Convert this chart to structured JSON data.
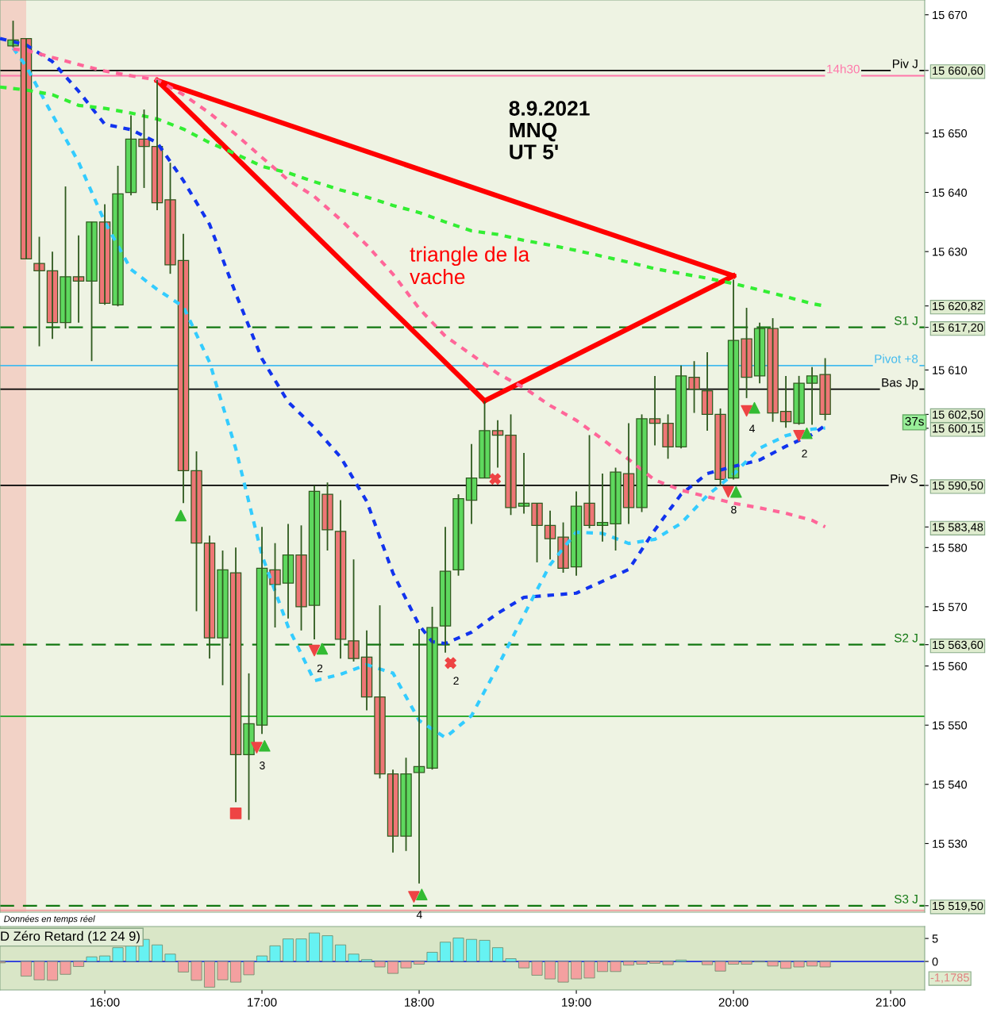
{
  "chart_data": [
    {
      "type": "candlestick",
      "title": "8.9.2021\nMNQ\nUT 5'",
      "tick_labels": "y",
      "annotations": [
        "triangle de la\nvache",
        "Données en temps réel",
        "37s",
        {
          "text": "3",
          "x": "2021-09-08T16:58",
          "y": 15546.2
        },
        {
          "text": "2",
          "x": "2021-09-08T17:20",
          "y": 15562.6
        },
        {
          "text": "2",
          "x": "2021-09-08T18:12",
          "y": 15560.5
        },
        {
          "text": "4",
          "x": "2021-09-08T17:58",
          "y": 15521.0
        },
        {
          "text": "8",
          "x": "2021-09-08T19:58",
          "y": 15589.4
        },
        {
          "text": "4",
          "x": "2021-09-08T20:05",
          "y": 15603.1
        },
        {
          "text": "2",
          "x": "2021-09-08T20:25",
          "y": 15598.9
        }
      ],
      "x": [
        "2021-09-08T15:25",
        "2021-09-08T15:30",
        "2021-09-08T15:35",
        "2021-09-08T15:40",
        "2021-09-08T15:45",
        "2021-09-08T15:50",
        "2021-09-08T15:55",
        "2021-09-08T16:00",
        "2021-09-08T16:05",
        "2021-09-08T16:10",
        "2021-09-08T16:15",
        "2021-09-08T16:20",
        "2021-09-08T16:25",
        "2021-09-08T16:30",
        "2021-09-08T16:35",
        "2021-09-08T16:40",
        "2021-09-08T16:45",
        "2021-09-08T16:50",
        "2021-09-08T16:55",
        "2021-09-08T17:00",
        "2021-09-08T17:05",
        "2021-09-08T17:10",
        "2021-09-08T17:15",
        "2021-09-08T17:20",
        "2021-09-08T17:25",
        "2021-09-08T17:30",
        "2021-09-08T17:35",
        "2021-09-08T17:40",
        "2021-09-08T17:45",
        "2021-09-08T17:50",
        "2021-09-08T17:55",
        "2021-09-08T18:00",
        "2021-09-08T18:05",
        "2021-09-08T18:10",
        "2021-09-08T18:15",
        "2021-09-08T18:20",
        "2021-09-08T18:25",
        "2021-09-08T18:30",
        "2021-09-08T18:35",
        "2021-09-08T18:40",
        "2021-09-08T18:45",
        "2021-09-08T18:50",
        "2021-09-08T18:55",
        "2021-09-08T19:00",
        "2021-09-08T19:05",
        "2021-09-08T19:10",
        "2021-09-08T19:15",
        "2021-09-08T19:20",
        "2021-09-08T19:25",
        "2021-09-08T19:30",
        "2021-09-08T19:35",
        "2021-09-08T19:40",
        "2021-09-08T19:45",
        "2021-09-08T19:50",
        "2021-09-08T19:55",
        "2021-09-08T20:00",
        "2021-09-08T20:05",
        "2021-09-08T20:10",
        "2021-09-08T20:15",
        "2021-09-08T20:20",
        "2021-09-08T20:25",
        "2021-09-08T20:30",
        "2021-09-08T20:35"
      ],
      "ohlc": [
        [
          15664.75,
          15669,
          15664.5,
          15665.75
        ],
        [
          15666,
          15666,
          15628.75,
          15628.75
        ],
        [
          15628,
          15632.5,
          15614,
          15626.75
        ],
        [
          15626.75,
          15630,
          15615.25,
          15618
        ],
        [
          15618,
          15641,
          15617,
          15625.75
        ],
        [
          15625.75,
          15632.75,
          15618,
          15625
        ],
        [
          15625,
          15635,
          15611.5,
          15635
        ],
        [
          15635,
          15638,
          15621,
          15621.25
        ],
        [
          15621,
          15644.5,
          15620.75,
          15639.75
        ],
        [
          15640,
          15653,
          15639.5,
          15649
        ],
        [
          15649,
          15654,
          15640.75,
          15647.75
        ],
        [
          15647.75,
          15659,
          15637,
          15638.25
        ],
        [
          15638.75,
          15645,
          15626.25,
          15627.75
        ],
        [
          15628.5,
          15633,
          15587.5,
          15593
        ],
        [
          15593,
          15596.25,
          15569.25,
          15580.75
        ],
        [
          15580.75,
          15582,
          15561.25,
          15564.75
        ],
        [
          15564.75,
          15579.5,
          15556.75,
          15576.25
        ],
        [
          15575.75,
          15580,
          15537,
          15545
        ],
        [
          15545,
          15558.75,
          15534,
          15550.25
        ],
        [
          15550,
          15583.5,
          15548.5,
          15576.5
        ],
        [
          15576.25,
          15580.75,
          15566.5,
          15573.75
        ],
        [
          15574,
          15584,
          15568,
          15578.75
        ],
        [
          15578.75,
          15583.75,
          15566,
          15570
        ],
        [
          15570.25,
          15590.5,
          15564.5,
          15589.5
        ],
        [
          15589,
          15591,
          15579.5,
          15583
        ],
        [
          15582.75,
          15588,
          15561.25,
          15564.5
        ],
        [
          15564.25,
          15578,
          15560.75,
          15561.25
        ],
        [
          15561.5,
          15566,
          15552.5,
          15554.75
        ],
        [
          15554.75,
          15570.25,
          15541,
          15541.75
        ],
        [
          15541.75,
          15542.5,
          15528.5,
          15531.25
        ],
        [
          15531.25,
          15544.5,
          15528.75,
          15541.75
        ],
        [
          15542,
          15566.25,
          15523.25,
          15543
        ],
        [
          15542.75,
          15570,
          15542.5,
          15566.5
        ],
        [
          15566.75,
          15583.5,
          15562.25,
          15576
        ],
        [
          15576.25,
          15589,
          15575.25,
          15588.25
        ],
        [
          15588,
          15597.5,
          15584,
          15591.75
        ],
        [
          15591.75,
          15604.75,
          15591.75,
          15599.75
        ],
        [
          15599.75,
          15601.5,
          15593.5,
          15599
        ],
        [
          15599,
          15602.5,
          15585.5,
          15586.75
        ],
        [
          15587,
          15596,
          15585.75,
          15587.5
        ],
        [
          15587.5,
          15587.5,
          15577.5,
          15583.75
        ],
        [
          15583.75,
          15586.25,
          15578,
          15581.5
        ],
        [
          15581.75,
          15584.25,
          15575.75,
          15576.5
        ],
        [
          15576.75,
          15589.5,
          15575.25,
          15587
        ],
        [
          15587.5,
          15599,
          15583.25,
          15583.75
        ],
        [
          15583.75,
          15592.5,
          15581,
          15584.25
        ],
        [
          15584,
          15593.5,
          15579.5,
          15592.75
        ],
        [
          15592.5,
          15601,
          15584,
          15586.75
        ],
        [
          15586.75,
          15602.5,
          15586,
          15601.75
        ],
        [
          15601.75,
          15609,
          15597.25,
          15601
        ],
        [
          15601,
          15602.5,
          15595,
          15597
        ],
        [
          15597,
          15610.75,
          15596.75,
          15609
        ],
        [
          15608.75,
          15611.5,
          15602.75,
          15606.75
        ],
        [
          15606.5,
          15613,
          15599.75,
          15602.5
        ],
        [
          15602.5,
          15603.5,
          15590.5,
          15591.5
        ],
        [
          15591.75,
          15625.25,
          15591.5,
          15615
        ],
        [
          15615.25,
          15620.5,
          15605.25,
          15608.75
        ],
        [
          15609,
          15618,
          15607.75,
          15617
        ],
        [
          15617,
          15618.75,
          15601.25,
          15602.75
        ],
        [
          15603,
          15609,
          15600.25,
          15601.25
        ],
        [
          15601,
          15609,
          15600.75,
          15607.75
        ],
        [
          15607.75,
          15610.5,
          15600.75,
          15609
        ],
        [
          15609.25,
          15612,
          15601.5,
          15602.5
        ]
      ],
      "series": [
        {
          "type": "line",
          "color": "#1133ee",
          "line_style": "dotted",
          "x": [
            "2021-09-08T15:20",
            "2021-09-08T15:30",
            "2021-09-08T15:40",
            "2021-09-08T15:50",
            "2021-09-08T16:00",
            "2021-09-08T16:10",
            "2021-09-08T16:20",
            "2021-09-08T16:30",
            "2021-09-08T16:40",
            "2021-09-08T16:50",
            "2021-09-08T17:00",
            "2021-09-08T17:10",
            "2021-09-08T17:20",
            "2021-09-08T17:30",
            "2021-09-08T17:40",
            "2021-09-08T17:50",
            "2021-09-08T18:00",
            "2021-09-08T18:05",
            "2021-09-08T18:10",
            "2021-09-08T18:20",
            "2021-09-08T18:30",
            "2021-09-08T18:40",
            "2021-09-08T19:00",
            "2021-09-08T19:20",
            "2021-09-08T19:30",
            "2021-09-08T19:40",
            "2021-09-08T19:50",
            "2021-09-08T20:00",
            "2021-09-08T20:10",
            "2021-09-08T20:20",
            "2021-09-08T20:30",
            "2021-09-08T20:35"
          ],
          "values": [
            15666.0,
            15664.9,
            15662.1,
            15657.1,
            15651.5,
            15650.6,
            15648.4,
            15642.0,
            15634.6,
            15622.9,
            15611.9,
            15604.6,
            15600.3,
            15595.3,
            15587.8,
            15575.7,
            15566.9,
            15564.1,
            15563.8,
            15565.7,
            15568.9,
            15571.6,
            15572.3,
            15576.3,
            15583.0,
            15589.0,
            15592.5,
            15593.7,
            15594.8,
            15597.1,
            15599.1,
            15600.6
          ]
        },
        {
          "type": "line",
          "color": "#33ccff",
          "line_style": "dotted",
          "x": [
            "2021-09-08T15:25",
            "2021-09-08T15:30",
            "2021-09-08T15:40",
            "2021-09-08T15:50",
            "2021-09-08T16:00",
            "2021-09-08T16:10",
            "2021-09-08T16:20",
            "2021-09-08T16:30",
            "2021-09-08T16:40",
            "2021-09-08T16:50",
            "2021-09-08T17:00",
            "2021-09-08T17:10",
            "2021-09-08T17:20",
            "2021-09-08T17:30",
            "2021-09-08T17:40",
            "2021-09-08T17:50",
            "2021-09-08T18:00",
            "2021-09-08T18:10",
            "2021-09-08T18:20",
            "2021-09-08T18:30",
            "2021-09-08T18:40",
            "2021-09-08T18:50",
            "2021-09-08T19:00",
            "2021-09-08T19:10",
            "2021-09-08T19:20",
            "2021-09-08T19:30",
            "2021-09-08T19:40",
            "2021-09-08T19:50",
            "2021-09-08T20:00",
            "2021-09-08T20:10",
            "2021-09-08T20:20",
            "2021-09-08T20:30",
            "2021-09-08T20:35"
          ],
          "values": [
            15664.4,
            15661.3,
            15653.1,
            15645.1,
            15635.0,
            15627.0,
            15623.6,
            15620.7,
            15611.3,
            15596.7,
            15578.7,
            15566.6,
            15557.5,
            15558.6,
            15560.2,
            15558.8,
            15550.8,
            15547.9,
            15551.6,
            15559.9,
            15568.6,
            15577.1,
            15582.6,
            15582.4,
            15580.7,
            15581.4,
            15584.1,
            15588.8,
            15592.4,
            15596.8,
            15598.9,
            15600.0,
            15600.2
          ]
        },
        {
          "type": "line",
          "color": "#ff6699",
          "line_style": "dotted",
          "x": [
            "2021-09-08T15:25",
            "2021-09-08T15:30",
            "2021-09-08T15:40",
            "2021-09-08T15:50",
            "2021-09-08T16:00",
            "2021-09-08T16:10",
            "2021-09-08T16:20",
            "2021-09-08T16:30",
            "2021-09-08T16:40",
            "2021-09-08T16:50",
            "2021-09-08T17:00",
            "2021-09-08T17:10",
            "2021-09-08T17:20",
            "2021-09-08T17:30",
            "2021-09-08T17:40",
            "2021-09-08T17:50",
            "2021-09-08T18:00",
            "2021-09-08T18:10",
            "2021-09-08T18:20",
            "2021-09-08T18:30",
            "2021-09-08T18:40",
            "2021-09-08T18:50",
            "2021-09-08T19:00",
            "2021-09-08T19:10",
            "2021-09-08T19:20",
            "2021-09-08T19:30",
            "2021-09-08T19:40",
            "2021-09-08T19:50",
            "2021-09-08T20:00",
            "2021-09-08T20:10",
            "2021-09-08T20:20",
            "2021-09-08T20:30",
            "2021-09-08T20:35"
          ],
          "values": [
            15664.2,
            15664.0,
            15662.8,
            15661.6,
            15660.5,
            15659.7,
            15659.0,
            15656.5,
            15653.4,
            15649.8,
            15645.9,
            15642.1,
            15639.3,
            15635.4,
            15631.1,
            15626.2,
            15620.4,
            15615.7,
            15612.6,
            15609.4,
            15607.0,
            15604.0,
            15601.5,
            15598.3,
            15594.9,
            15591.4,
            15589.7,
            15588.6,
            15587.5,
            15586.7,
            15585.8,
            15584.6,
            15583.5
          ]
        },
        {
          "type": "line",
          "color": "#33ee33",
          "line_style": "dotted",
          "x": [
            "2021-09-08T15:20",
            "2021-09-08T15:30",
            "2021-09-08T15:40",
            "2021-09-08T15:50",
            "2021-09-08T16:00",
            "2021-09-08T16:10",
            "2021-09-08T16:20",
            "2021-09-08T16:30",
            "2021-09-08T16:40",
            "2021-09-08T16:50",
            "2021-09-08T17:00",
            "2021-09-08T17:10",
            "2021-09-08T17:20",
            "2021-09-08T17:30",
            "2021-09-08T17:40",
            "2021-09-08T17:50",
            "2021-09-08T18:00",
            "2021-09-08T18:10",
            "2021-09-08T18:20",
            "2021-09-08T18:30",
            "2021-09-08T18:40",
            "2021-09-08T18:50",
            "2021-09-08T19:00",
            "2021-09-08T19:10",
            "2021-09-08T19:20",
            "2021-09-08T19:30",
            "2021-09-08T19:40",
            "2021-09-08T19:50",
            "2021-09-08T20:00",
            "2021-09-08T20:10",
            "2021-09-08T20:20",
            "2021-09-08T20:30",
            "2021-09-08T20:35"
          ],
          "values": [
            15657.8,
            15657.3,
            15656.5,
            15654.7,
            15654.2,
            15653.4,
            15652.4,
            15650.7,
            15648.4,
            15646.5,
            15644.4,
            15643.3,
            15641.8,
            15640.4,
            15639.2,
            15637.8,
            15636.6,
            15635.0,
            15633.5,
            15632.9,
            15631.9,
            15631.1,
            15630.2,
            15629.2,
            15628.2,
            15627.1,
            15626.3,
            15625.5,
            15624.6,
            15623.5,
            15622.4,
            15621.2,
            15620.8
          ]
        },
        {
          "type": "line",
          "color": "#ff0000",
          "line_style": "solid",
          "x": [
            "2021-09-08T16:20",
            "2021-09-08T20:00"
          ],
          "values": [
            15658.9,
            15625.9
          ]
        },
        {
          "type": "line",
          "color": "#ff0000",
          "line_style": "solid",
          "x": [
            "2021-09-08T16:20",
            "2021-09-08T18:25"
          ],
          "values": [
            15658.9,
            15604.8
          ]
        },
        {
          "type": "line",
          "color": "#ff0000",
          "line_style": "solid",
          "x": [
            "2021-09-08T18:25",
            "2021-09-08T20:00"
          ],
          "values": [
            15604.8,
            15625.9
          ]
        },
        {
          "type": "scatter",
          "marker": "triangle",
          "color": "#33bb33",
          "x": [
            "2021-09-08T16:29",
            "2021-09-08T17:01",
            "2021-09-08T17:23",
            "2021-09-08T18:01",
            "2021-09-08T20:01",
            "2021-09-08T20:08",
            "2021-09-08T20:28"
          ],
          "values": [
            15585.4,
            15546.5,
            15562.9,
            15521.4,
            15589.4,
            15603.6,
            15599.3
          ]
        },
        {
          "type": "scatter",
          "marker": "triangle_down",
          "color": "#ee4444",
          "x": [
            "2021-09-08T16:58",
            "2021-09-08T17:20",
            "2021-09-08T17:58",
            "2021-09-08T19:58",
            "2021-09-08T20:05",
            "2021-09-08T20:25"
          ],
          "values": [
            15546.2,
            15562.6,
            15521.0,
            15589.4,
            15603.1,
            15598.9
          ]
        },
        {
          "type": "scatter",
          "marker": "cross",
          "color": "#ee4444",
          "x": [
            "2021-09-08T18:29",
            "2021-09-08T18:12"
          ],
          "values": [
            15591.6,
            15560.5
          ]
        },
        {
          "type": "scatter",
          "marker": "square",
          "color": "#ee4444",
          "x": [
            "2021-09-08T16:50"
          ],
          "values": [
            15535.1
          ]
        }
      ],
      "bands": [
        {
          "axis": "x",
          "from": "2021-09-08T15:20",
          "to": "2021-09-08T15:30",
          "color": "#f2d2c6"
        }
      ],
      "ref_lines": [
        {
          "axis": "y",
          "value": 15660.6,
          "label": "Piv J",
          "color": "#000000",
          "line_style": "solid"
        },
        {
          "axis": "y",
          "value": 15659.7,
          "label": "14h30",
          "color": "#ff77aa",
          "line_style": "solid"
        },
        {
          "axis": "y",
          "value": 15617.2,
          "label": "S1 J",
          "color": "#117711",
          "line_style": "dashed"
        },
        {
          "axis": "y",
          "value": 15610.75,
          "label": "Pivot +8",
          "color": "#44bbee",
          "line_style": "solid"
        },
        {
          "axis": "y",
          "value": 15606.75,
          "label": "Bas Jp",
          "color": "#000000",
          "line_style": "solid"
        },
        {
          "axis": "y",
          "value": 15590.5,
          "label": "Piv S",
          "color": "#000000",
          "line_style": "solid"
        },
        {
          "axis": "y",
          "value": 15563.6,
          "label": "S2 J",
          "color": "#117711",
          "line_style": "dashed"
        },
        {
          "axis": "y",
          "value": 15551.5,
          "label": null,
          "color": "#33aa33",
          "line_style": "solid"
        },
        {
          "axis": "y",
          "value": 15519.5,
          "label": "S3 J",
          "color": "#117711",
          "line_style": "dashed"
        },
        {
          "axis": "y",
          "value": 15518.7,
          "label": null,
          "color": "#f0a0a0",
          "line_style": "solid"
        }
      ],
      "xlim": [
        "2021-09-08T15:20",
        "2021-09-08T21:13"
      ],
      "ylim": [
        15518.4,
        15672.5
      ],
      "yticks": [
        {
          "value": 15670,
          "label": "15 670"
        },
        {
          "value": 15660.6,
          "label": "15 660,60"
        },
        {
          "value": 15650,
          "label": "15 650"
        },
        {
          "value": 15640,
          "label": "15 640"
        },
        {
          "value": 15630,
          "label": "15 630"
        },
        {
          "value": 15620.82,
          "label": "15 620,82"
        },
        {
          "value": 15617.2,
          "label": "15 617,20"
        },
        {
          "value": 15610,
          "label": "15 610"
        },
        {
          "value": 15602.5,
          "label": "15 602,50"
        },
        {
          "value": 15600.15,
          "label": "15 600,15"
        },
        {
          "value": 15590.5,
          "label": "15 590,50"
        },
        {
          "value": 15583.48,
          "label": "15 583,48"
        },
        {
          "value": 15580,
          "label": "15 580"
        },
        {
          "value": 15570,
          "label": "15 570"
        },
        {
          "value": 15563.6,
          "label": "15 563,60"
        },
        {
          "value": 15560,
          "label": "15 560"
        },
        {
          "value": 15550,
          "label": "15 550"
        },
        {
          "value": 15540,
          "label": "15 540"
        },
        {
          "value": 15530,
          "label": "15 530"
        },
        {
          "value": 15519.5,
          "label": "15 519,50"
        }
      ]
    },
    {
      "type": "bar",
      "title": "D Zéro Retard (12 24 9)",
      "annotations": [
        "-1,1785"
      ],
      "x": [
        "2021-09-08T15:20",
        "2021-09-08T15:25",
        "2021-09-08T15:30",
        "2021-09-08T15:35",
        "2021-09-08T15:40",
        "2021-09-08T15:45",
        "2021-09-08T15:50",
        "2021-09-08T15:55",
        "2021-09-08T16:00",
        "2021-09-08T16:05",
        "2021-09-08T16:10",
        "2021-09-08T16:15",
        "2021-09-08T16:20",
        "2021-09-08T16:25",
        "2021-09-08T16:30",
        "2021-09-08T16:35",
        "2021-09-08T16:40",
        "2021-09-08T16:45",
        "2021-09-08T16:50",
        "2021-09-08T16:55",
        "2021-09-08T17:00",
        "2021-09-08T17:05",
        "2021-09-08T17:10",
        "2021-09-08T17:15",
        "2021-09-08T17:20",
        "2021-09-08T17:25",
        "2021-09-08T17:30",
        "2021-09-08T17:35",
        "2021-09-08T17:40",
        "2021-09-08T17:45",
        "2021-09-08T17:50",
        "2021-09-08T17:55",
        "2021-09-08T18:00",
        "2021-09-08T18:05",
        "2021-09-08T18:10",
        "2021-09-08T18:15",
        "2021-09-08T18:20",
        "2021-09-08T18:25",
        "2021-09-08T18:30",
        "2021-09-08T18:35",
        "2021-09-08T18:40",
        "2021-09-08T18:45",
        "2021-09-08T18:50",
        "2021-09-08T18:55",
        "2021-09-08T19:00",
        "2021-09-08T19:05",
        "2021-09-08T19:10",
        "2021-09-08T19:15",
        "2021-09-08T19:20",
        "2021-09-08T19:25",
        "2021-09-08T19:30",
        "2021-09-08T19:35",
        "2021-09-08T19:40",
        "2021-09-08T19:45",
        "2021-09-08T19:50",
        "2021-09-08T19:55",
        "2021-09-08T20:00",
        "2021-09-08T20:05",
        "2021-09-08T20:10",
        "2021-09-08T20:15",
        "2021-09-08T20:20",
        "2021-09-08T20:25",
        "2021-09-08T20:30",
        "2021-09-08T20:35"
      ],
      "values": [
        -0.3,
        null,
        -3.2,
        -4.0,
        -4.1,
        -2.8,
        -1.1,
        1.0,
        1.2,
        3.0,
        3.4,
        4.8,
        3.6,
        1.6,
        -2.3,
        -4.1,
        -5.6,
        -4.0,
        -4.5,
        -2.9,
        1.2,
        3.4,
        4.9,
        4.9,
        6.2,
        5.6,
        3.6,
        1.6,
        0.4,
        -1.2,
        -2.6,
        -1.4,
        -0.6,
        2.0,
        4.2,
        5.1,
        4.8,
        4.6,
        3.0,
        0.6,
        -1.4,
        -3.0,
        -3.8,
        -4.5,
        -3.8,
        -3.6,
        -2.2,
        -2.2,
        -0.8,
        -0.6,
        -0.4,
        -0.7,
        0.3,
        null,
        -0.7,
        -2.1,
        -0.6,
        -0.6,
        -0.1,
        -1.0,
        -1.5,
        -1.2,
        -1.0,
        -1.2
      ],
      "colors": [
        "#f4a0a0",
        "#f4a0a0",
        "#f4a0a0",
        "#f4a0a0",
        "#f4a0a0",
        "#f4a0a0",
        "#f4a0a0",
        "#66f2f2",
        "#66f2f2",
        "#66f2f2",
        "#66f2f2",
        "#66f2f2",
        "#66f2f2",
        "#66f2f2",
        "#f4a0a0",
        "#f4a0a0",
        "#f4a0a0",
        "#f4a0a0",
        "#f4a0a0",
        "#f4a0a0",
        "#66f2f2",
        "#66f2f2",
        "#66f2f2",
        "#66f2f2",
        "#66f2f2",
        "#66f2f2",
        "#66f2f2",
        "#66f2f2",
        "#66f2f2",
        "#f4a0a0",
        "#f4a0a0",
        "#f4a0a0",
        "#f4a0a0",
        "#66f2f2",
        "#66f2f2",
        "#66f2f2",
        "#66f2f2",
        "#66f2f2",
        "#66f2f2",
        "#66f2f2",
        "#f4a0a0",
        "#f4a0a0",
        "#f4a0a0",
        "#f4a0a0",
        "#f4a0a0",
        "#f4a0a0",
        "#f4a0a0",
        "#f4a0a0",
        "#f4a0a0",
        "#f4a0a0",
        "#f4a0a0",
        "#f4a0a0",
        "#66f2f2",
        "#66f2f2",
        "#f4a0a0",
        "#f4a0a0",
        "#f4a0a0",
        "#f4a0a0",
        "#f4a0a0",
        "#f4a0a0",
        "#f4a0a0",
        "#f4a0a0",
        "#f4a0a0",
        "#f4a0a0"
      ],
      "ref_lines": [
        {
          "axis": "y",
          "value": 0,
          "label": null,
          "color": "#2233dd",
          "line_style": "solid"
        }
      ],
      "xlim": [
        "2021-09-08T15:20",
        "2021-09-08T21:13"
      ],
      "xticks": [
        {
          "value": "2021-09-08T16:00",
          "label": "16:00"
        },
        {
          "value": "2021-09-08T17:00",
          "label": "17:00"
        },
        {
          "value": "2021-09-08T18:00",
          "label": "18:00"
        },
        {
          "value": "2021-09-08T19:00",
          "label": "19:00"
        },
        {
          "value": "2021-09-08T20:00",
          "label": "20:00"
        },
        {
          "value": "2021-09-08T21:00",
          "label": "21:00"
        }
      ],
      "ylim": [
        -6.2,
        7.6
      ],
      "yticks": [
        5,
        0
      ]
    }
  ]
}
